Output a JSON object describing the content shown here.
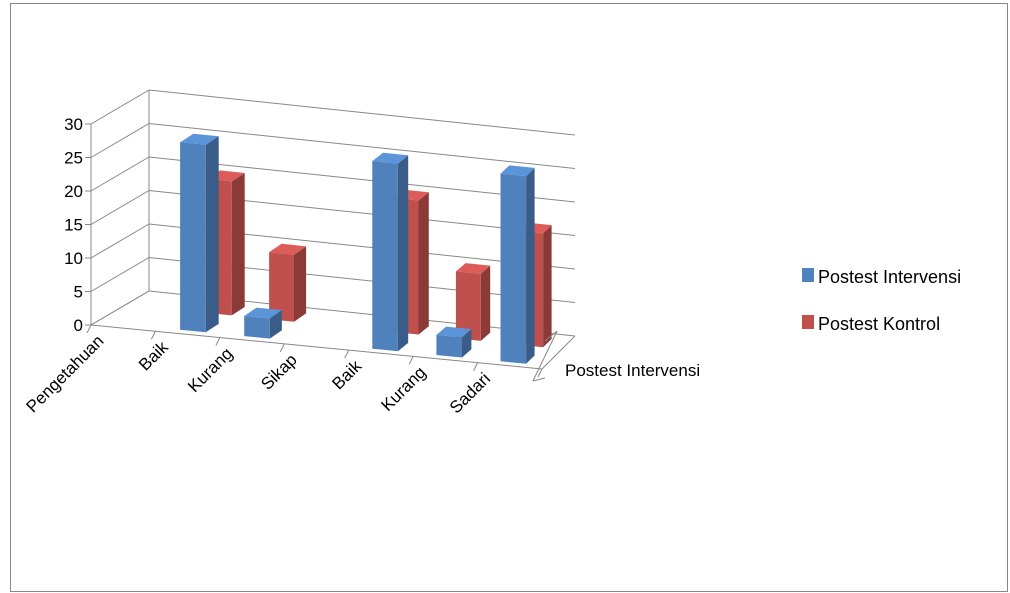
{
  "chart_data": {
    "type": "bar",
    "style": "3d-clustered-column",
    "categories": [
      "Pengetahuan",
      "Baik",
      "Kurang",
      "Sikap",
      "Baik",
      "Kurang",
      "Sadari"
    ],
    "series": [
      {
        "name": "Postest Intervensi",
        "color": "#4F81BD",
        "values": [
          0,
          28,
          3,
          0,
          28,
          3,
          28
        ]
      },
      {
        "name": "Postest Kontrol",
        "color": "#C0504D",
        "values": [
          0,
          20,
          10,
          0,
          20,
          10,
          17
        ]
      }
    ],
    "depth_axis_label": "Postest Intervensi",
    "ylim": [
      0,
      30
    ],
    "yticks": [
      "0",
      "5",
      "10",
      "15",
      "20",
      "25",
      "30"
    ],
    "grid": true,
    "legend_position": "right"
  }
}
